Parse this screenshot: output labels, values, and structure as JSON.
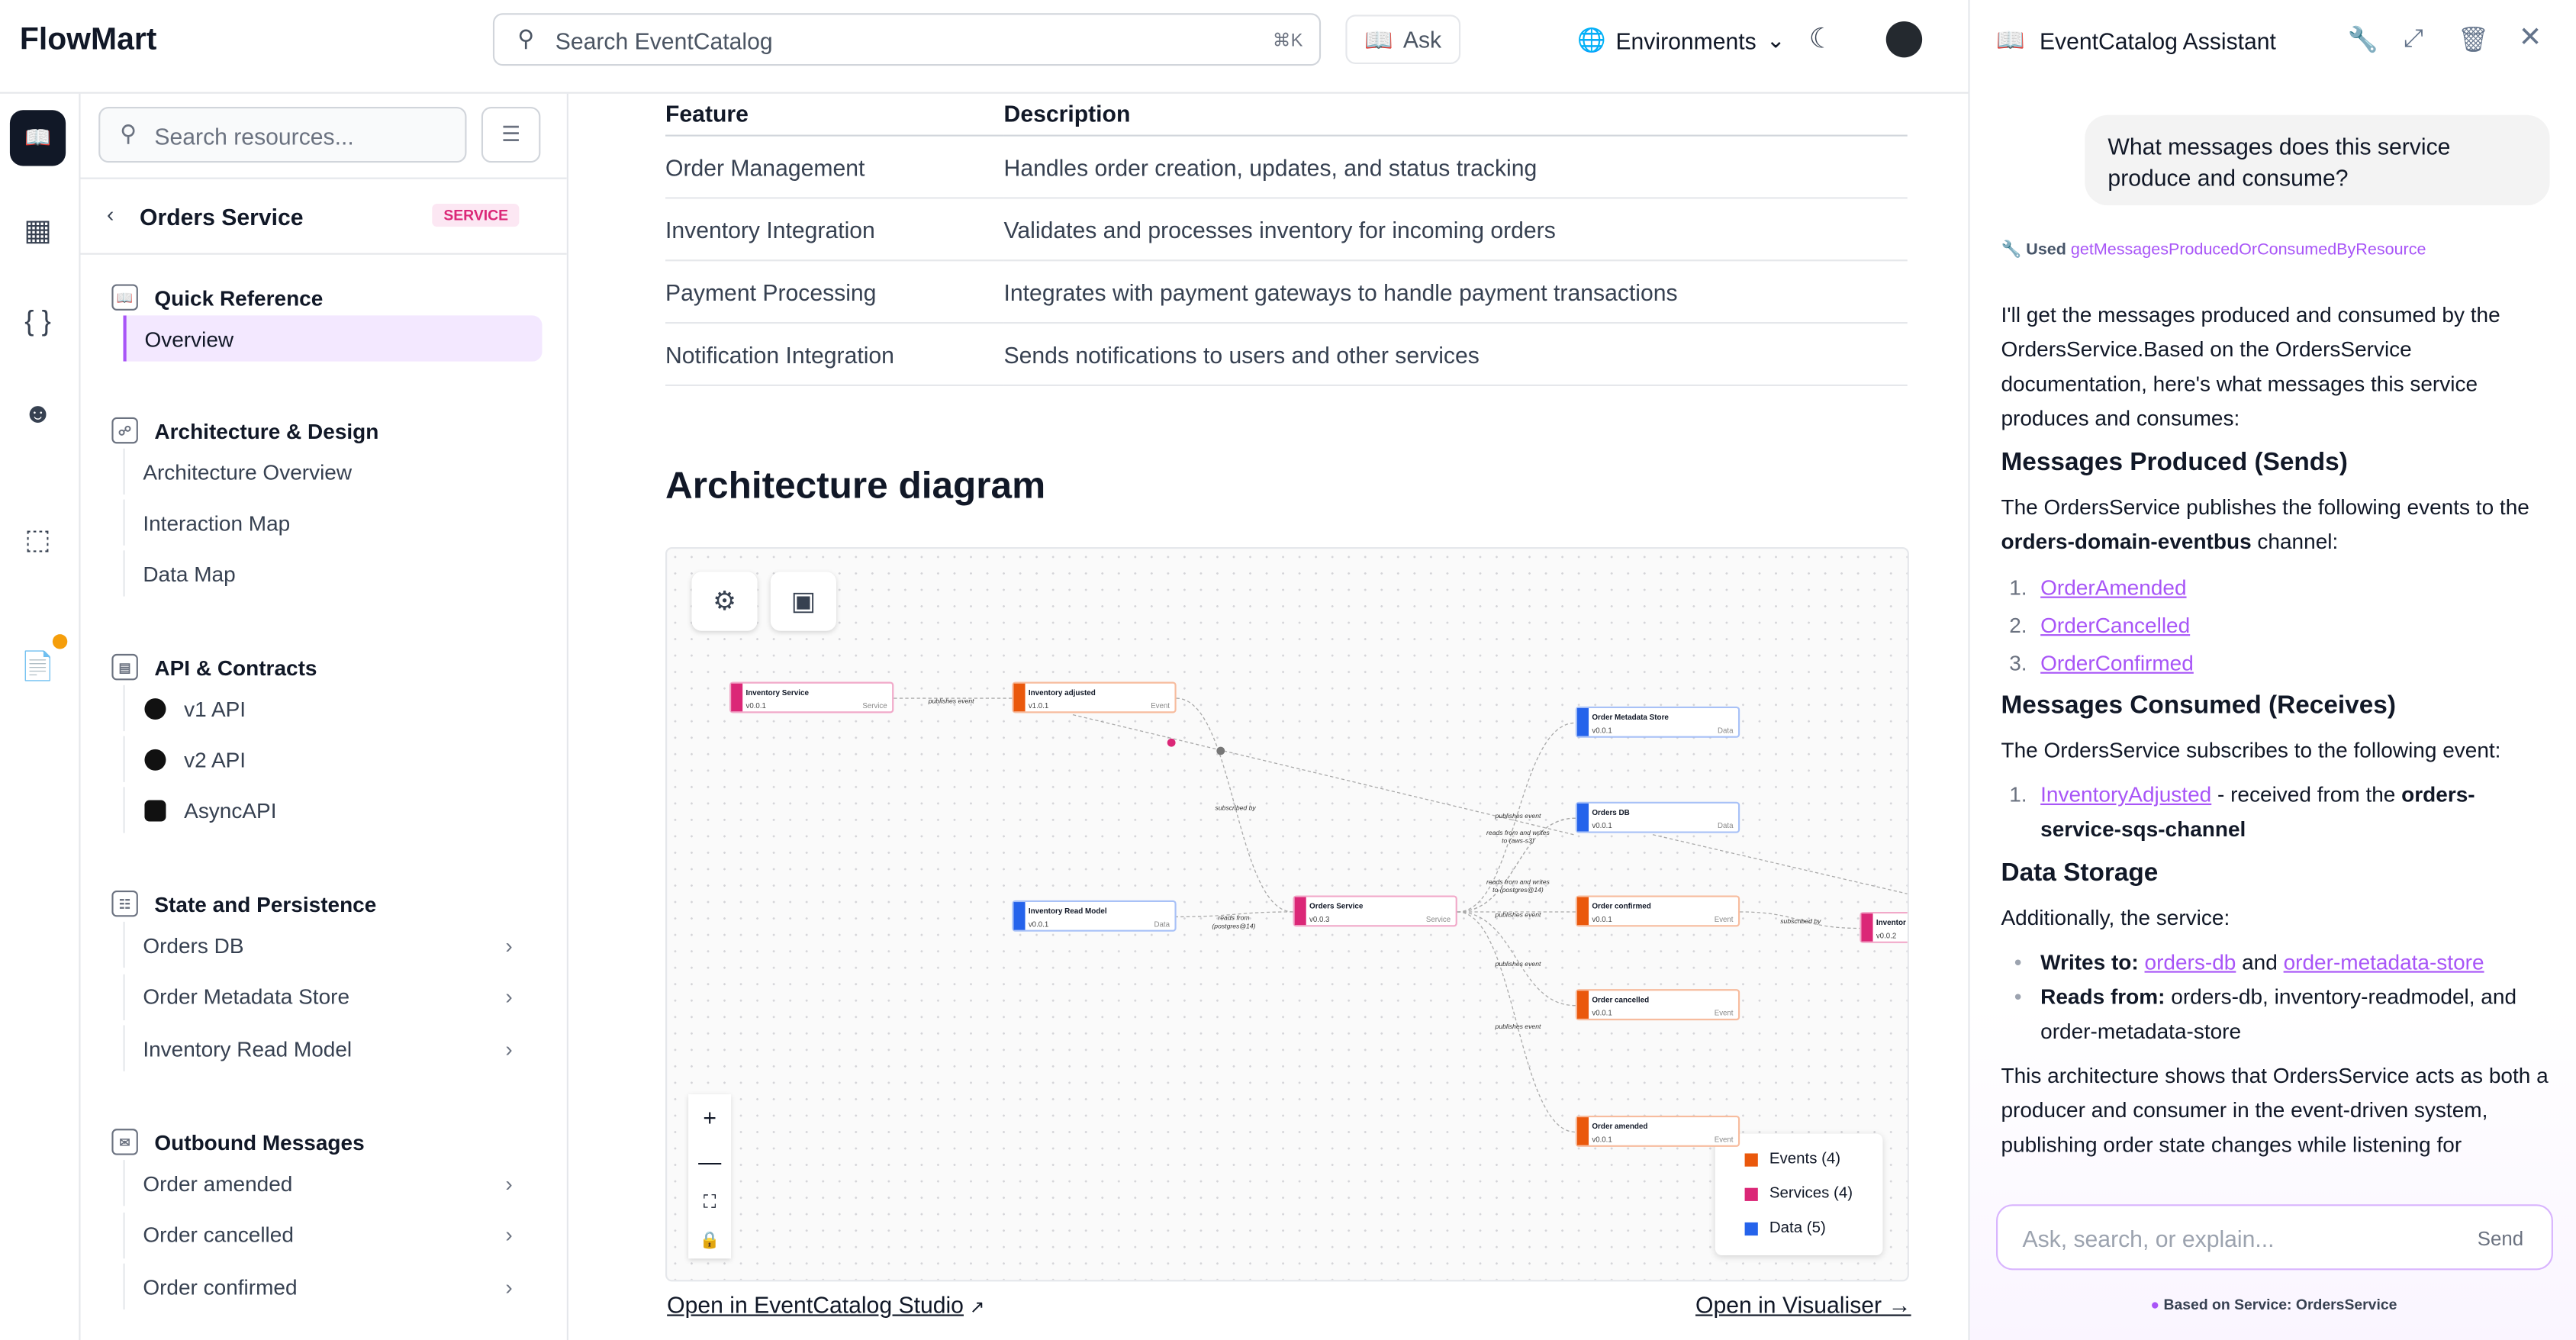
{
  "header": {
    "logo": "FlowMart",
    "search_placeholder": "Search EventCatalog",
    "shortcut": "⌘K",
    "ask": "Ask",
    "environments": "Environments"
  },
  "sidebar": {
    "search_placeholder": "Search resources...",
    "title": "Orders Service",
    "badge": "SERVICE",
    "sections": [
      {
        "label": "Quick Reference",
        "items": [
          "Overview"
        ]
      },
      {
        "label": "Architecture & Design",
        "items": [
          "Architecture Overview",
          "Interaction Map",
          "Data Map"
        ]
      },
      {
        "label": "API & Contracts",
        "items": [
          "v1 API",
          "v2 API",
          "AsyncAPI"
        ]
      },
      {
        "label": "State and Persistence",
        "items": [
          "Orders DB",
          "Order Metadata Store",
          "Inventory Read Model"
        ]
      },
      {
        "label": "Outbound Messages",
        "items": [
          "Order amended",
          "Order cancelled",
          "Order confirmed"
        ]
      }
    ]
  },
  "table": {
    "headers": [
      "Feature",
      "Description"
    ],
    "rows": [
      [
        "Order Management",
        "Handles order creation, updates, and status tracking"
      ],
      [
        "Inventory Integration",
        "Validates and processes inventory for incoming orders"
      ],
      [
        "Payment Processing",
        "Integrates with payment gateways to handle payment transactions"
      ],
      [
        "Notification Integration",
        "Sends notifications to users and other services"
      ]
    ]
  },
  "diagram": {
    "title": "Architecture diagram",
    "nodes": [
      {
        "id": "inv-svc",
        "name": "Inventory Service",
        "version": "v0.0.1",
        "type": "Service"
      },
      {
        "id": "inv-adj",
        "name": "Inventory adjusted",
        "version": "v1.0.1",
        "type": "Event"
      },
      {
        "id": "meta",
        "name": "Order Metadata Store",
        "version": "v0.0.1",
        "type": "Data"
      },
      {
        "id": "odb",
        "name": "Orders DB",
        "version": "v0.0.1",
        "type": "Data"
      },
      {
        "id": "irm",
        "name": "Inventory Read Model",
        "version": "v0.0.1",
        "type": "Data"
      },
      {
        "id": "osvc",
        "name": "Orders Service",
        "version": "v0.0.3",
        "type": "Service"
      },
      {
        "id": "oconf",
        "name": "Order confirmed",
        "version": "v0.0.1",
        "type": "Event"
      },
      {
        "id": "ocanc",
        "name": "Order cancelled",
        "version": "v0.0.1",
        "type": "Event"
      },
      {
        "id": "oamd",
        "name": "Order amended",
        "version": "v0.0.1",
        "type": "Event"
      },
      {
        "id": "inv2",
        "name": "Inventor",
        "version": "v0.0.2",
        "type": ""
      }
    ],
    "edge_labels": [
      "publishes event",
      "subscribed by",
      "reads from (postgres@14)",
      "publishes event",
      "reads from and writes to (aws-s3)",
      "reads from and writes to (postgres@14)",
      "publishes event",
      "publishes event",
      "publishes event",
      "subscribed by"
    ],
    "legend": [
      "Events (4)",
      "Services (4)",
      "Data (5)"
    ],
    "colors": {
      "Event": "#ea580c",
      "Service": "#db2777",
      "Data": "#2563eb"
    },
    "open_studio": "Open in EventCatalog Studio",
    "open_visualiser": "Open in Visualiser →"
  },
  "chat": {
    "title": "EventCatalog Assistant",
    "question": "What messages does this service produce and consume?",
    "used_label": "Used",
    "tool": "getMessagesProducedOrConsumedByResource",
    "intro": "I'll get the messages produced and consumed by the OrdersService.Based on the OrdersService documentation, here's what messages this service produces and consumes:",
    "produced_title": "Messages Produced (Sends)",
    "produced_intro": "The OrdersService publishes the following events to the ",
    "produced_channel": "orders-domain-eventbus",
    "produced_suffix": " channel:",
    "produced": [
      "OrderAmended",
      "OrderCancelled",
      "OrderConfirmed"
    ],
    "consumed_title": "Messages Consumed (Receives)",
    "consumed_intro": "The OrdersService subscribes to the following event:",
    "consumed_event": "InventoryAdjusted",
    "consumed_mid": " - received from the ",
    "consumed_channel": "orders-service-sqs-channel",
    "storage_title": "Data Storage",
    "storage_intro": "Additionally, the service:",
    "writes_label": "Writes to:",
    "writes_a": "orders-db",
    "and": " and ",
    "writes_b": "order-metadata-store",
    "reads_label": "Reads from:",
    "reads_value": " orders-db, inventory-readmodel, and order-metadata-store",
    "outro": "This architecture shows that OrdersService acts as both a producer and consumer in the event-driven system, publishing order state changes while listening for",
    "input_placeholder": "Ask, search, or explain...",
    "send": "Send",
    "footer": "Based on Service: OrdersService"
  }
}
